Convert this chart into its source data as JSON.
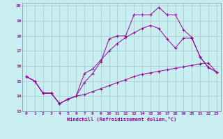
{
  "xlabel": "Windchill (Refroidissement éolien,°C)",
  "bg_color": "#c8eef0",
  "grid_color": "#a0c8d0",
  "line_color": "#990099",
  "xlim": [
    -0.5,
    23.5
  ],
  "ylim": [
    13,
    20.2
  ],
  "xticks": [
    0,
    1,
    2,
    3,
    4,
    5,
    6,
    7,
    8,
    9,
    10,
    11,
    12,
    13,
    14,
    15,
    16,
    17,
    18,
    19,
    20,
    21,
    22,
    23
  ],
  "yticks": [
    13,
    14,
    15,
    16,
    17,
    18,
    19,
    20
  ],
  "curve1_x": [
    0,
    1,
    2,
    3,
    4,
    5,
    6,
    7,
    8,
    9,
    10,
    11,
    12,
    13,
    14,
    15,
    16,
    17,
    18,
    19,
    20,
    21,
    22,
    23
  ],
  "curve1_y": [
    15.3,
    15.0,
    14.2,
    14.2,
    13.5,
    13.8,
    14.0,
    14.9,
    15.5,
    16.3,
    17.8,
    18.0,
    18.0,
    19.4,
    19.4,
    19.4,
    19.9,
    19.4,
    19.4,
    18.4,
    17.9,
    16.6,
    15.9,
    15.6
  ],
  "curve2_x": [
    0,
    1,
    2,
    3,
    4,
    5,
    6,
    7,
    8,
    9,
    10,
    11,
    12,
    13,
    14,
    15,
    16,
    17,
    18,
    19,
    20,
    21,
    22,
    23
  ],
  "curve2_y": [
    15.3,
    15.0,
    14.2,
    14.2,
    13.5,
    13.8,
    14.0,
    15.5,
    15.8,
    16.4,
    17.0,
    17.5,
    17.9,
    18.2,
    18.5,
    18.7,
    18.5,
    17.8,
    17.2,
    17.85,
    17.85,
    16.6,
    15.9,
    15.6
  ],
  "curve3_x": [
    0,
    1,
    2,
    3,
    4,
    5,
    6,
    7,
    8,
    9,
    10,
    11,
    12,
    13,
    14,
    15,
    16,
    17,
    18,
    19,
    20,
    21,
    22,
    23
  ],
  "curve3_y": [
    15.3,
    15.0,
    14.2,
    14.2,
    13.5,
    13.8,
    14.0,
    14.1,
    14.3,
    14.5,
    14.7,
    14.9,
    15.1,
    15.3,
    15.45,
    15.55,
    15.65,
    15.75,
    15.85,
    15.95,
    16.05,
    16.15,
    16.2,
    15.6
  ]
}
